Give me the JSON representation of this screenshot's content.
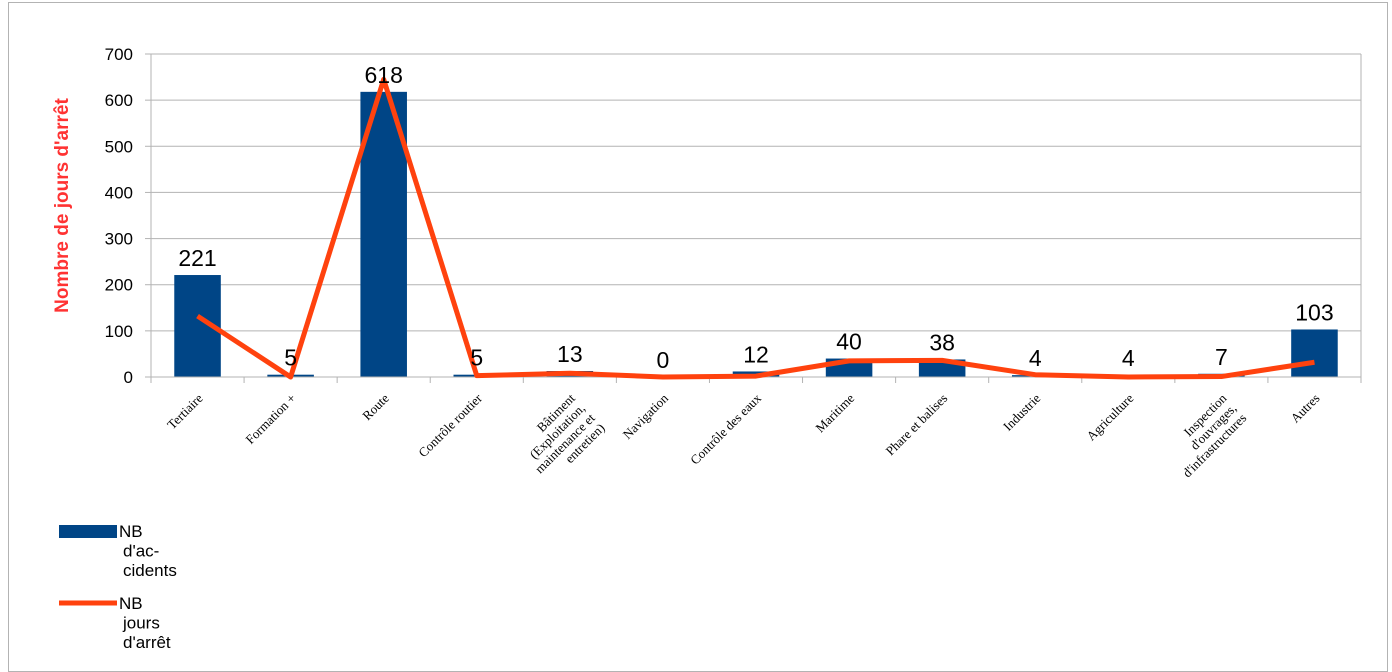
{
  "chart_data": {
    "type": "bar",
    "title": "",
    "xlabel": "",
    "ylabel": "Nombre de jours d'arrêt",
    "ylim": [
      0,
      700
    ],
    "yticks": [
      "0",
      "100",
      "200",
      "300",
      "400",
      "500",
      "600",
      "700"
    ],
    "grid": true,
    "legend_position": "bottom-left",
    "categories": [
      [
        "Tertiaire"
      ],
      [
        "Formation +"
      ],
      [
        "Route"
      ],
      [
        "Contrôle routier"
      ],
      [
        "Bâtiment",
        "(Exploitation,",
        "maintenance et",
        "entretien)"
      ],
      [
        "Navigation"
      ],
      [
        "Contrôle des eaux"
      ],
      [
        "Maritime"
      ],
      [
        "Phare et balises"
      ],
      [
        "Industrie"
      ],
      [
        "Agriculture"
      ],
      [
        "Inspection",
        "d'ouvrages,",
        "d'infrastructures"
      ],
      [
        "Autres"
      ]
    ],
    "series": [
      {
        "name": [
          "NB",
          "d'ac-",
          "cidents"
        ],
        "type": "bar",
        "color": "#004586",
        "values": [
          221,
          5,
          618,
          5,
          13,
          0,
          12,
          40,
          38,
          4,
          4,
          7,
          103
        ],
        "labels": [
          "221",
          "5",
          "618",
          "5",
          "13",
          "0",
          "12",
          "40",
          "38",
          "4",
          "4",
          "7",
          "103"
        ]
      },
      {
        "name": [
          "NB",
          "jours",
          "d'arrêt"
        ],
        "type": "line",
        "color": "#ff420e",
        "values": [
          132,
          0,
          645,
          3,
          8,
          0,
          2,
          35,
          36,
          5,
          0,
          1,
          32
        ]
      }
    ]
  }
}
